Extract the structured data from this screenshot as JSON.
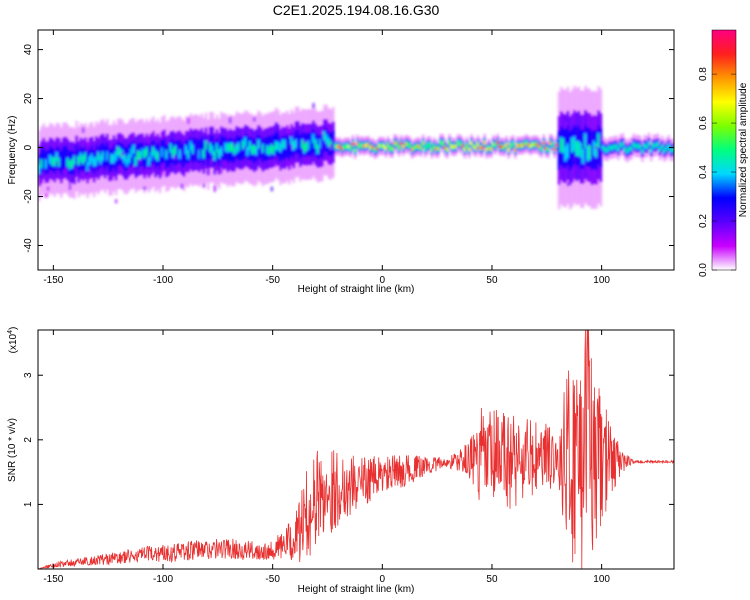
{
  "title": "C2E1.2025.194.08.16.G30",
  "colors": {
    "trace": "#e83030",
    "colormap": [
      "#ffffff",
      "#c800ff",
      "#5a00ff",
      "#0000ff",
      "#00d7ff",
      "#00ff7f",
      "#7cff00",
      "#ffff00",
      "#ff9600",
      "#ff1e1e",
      "#ff0080"
    ]
  },
  "chart_data": [
    {
      "type": "heatmap",
      "title": "C2E1.2025.194.08.16.G30",
      "xlabel": "Height of straight line (km)",
      "ylabel": "Frequency (Hz)",
      "xlim": [
        -157,
        133
      ],
      "ylim": [
        -50,
        48
      ],
      "x_ticks": [
        -150,
        -100,
        -50,
        0,
        50,
        100
      ],
      "y_ticks": [
        -40,
        -20,
        0,
        20,
        40
      ],
      "colorbar": {
        "label": "Normalized spectral amplitude",
        "range": [
          0,
          0.98
        ],
        "ticks": [
          0.0,
          0.2,
          0.4,
          0.6,
          0.8
        ],
        "colormap": "rainbow-white"
      },
      "features": [
        {
          "name": "noisy band",
          "x_range": [
            -157,
            -22
          ],
          "center_hz": [
            -6,
            2
          ],
          "width_hz": 12
        },
        {
          "name": "narrow line",
          "x_range": [
            -22,
            80
          ],
          "center_hz": 0.5,
          "peak_amplitude": 0.95
        },
        {
          "name": "noisy band",
          "x_range": [
            80,
            100
          ],
          "center_hz": 0,
          "width_hz": 20
        },
        {
          "name": "steady line",
          "x_range": [
            100,
            133
          ],
          "center_hz": 0,
          "width_hz": 4,
          "amplitude": 0.45
        }
      ],
      "grid": false
    },
    {
      "type": "line",
      "xlabel": "Height of straight line (km)",
      "ylabel": "SNR (10 * v/v)",
      "y_multiplier": "(x10",
      "y_multiplier_exp": "4",
      "xlim": [
        -157,
        133
      ],
      "ylim": [
        0,
        3.7
      ],
      "x_ticks": [
        -150,
        -100,
        -50,
        0,
        50,
        100
      ],
      "y_ticks": [
        1,
        2,
        3
      ],
      "series": [
        {
          "color": "#e83030",
          "x": [
            -157,
            -150,
            -140,
            -130,
            -120,
            -110,
            -100,
            -90,
            -80,
            -70,
            -60,
            -50,
            -40,
            -35,
            -30,
            -25,
            -20,
            -15,
            -10,
            -5,
            0,
            10,
            20,
            30,
            40,
            45,
            50,
            55,
            60,
            65,
            70,
            75,
            80,
            85,
            90,
            95,
            100,
            105,
            110,
            115,
            120,
            125,
            133
          ],
          "envelope": [
            0.0,
            0.06,
            0.1,
            0.14,
            0.17,
            0.22,
            0.25,
            0.28,
            0.3,
            0.32,
            0.28,
            0.3,
            0.45,
            0.8,
            1.1,
            1.2,
            1.25,
            1.3,
            1.35,
            1.4,
            1.45,
            1.52,
            1.6,
            1.65,
            1.7,
            1.7,
            1.7,
            1.7,
            1.7,
            1.7,
            1.7,
            1.7,
            1.7,
            1.7,
            1.7,
            1.7,
            1.7,
            1.68,
            1.66,
            1.66,
            1.66,
            1.66,
            1.66
          ],
          "variation": [
            0.0,
            0.04,
            0.06,
            0.08,
            0.1,
            0.12,
            0.14,
            0.16,
            0.16,
            0.16,
            0.15,
            0.15,
            0.35,
            0.7,
            0.75,
            0.7,
            0.6,
            0.5,
            0.4,
            0.35,
            0.3,
            0.25,
            0.15,
            0.08,
            0.3,
            0.8,
            0.8,
            0.8,
            0.8,
            0.7,
            0.6,
            0.6,
            0.3,
            1.6,
            1.9,
            1.6,
            1.0,
            0.5,
            0.15,
            0.02,
            0.02,
            0.02,
            0.02
          ],
          "peak": 3.7
        }
      ],
      "grid": false
    }
  ]
}
